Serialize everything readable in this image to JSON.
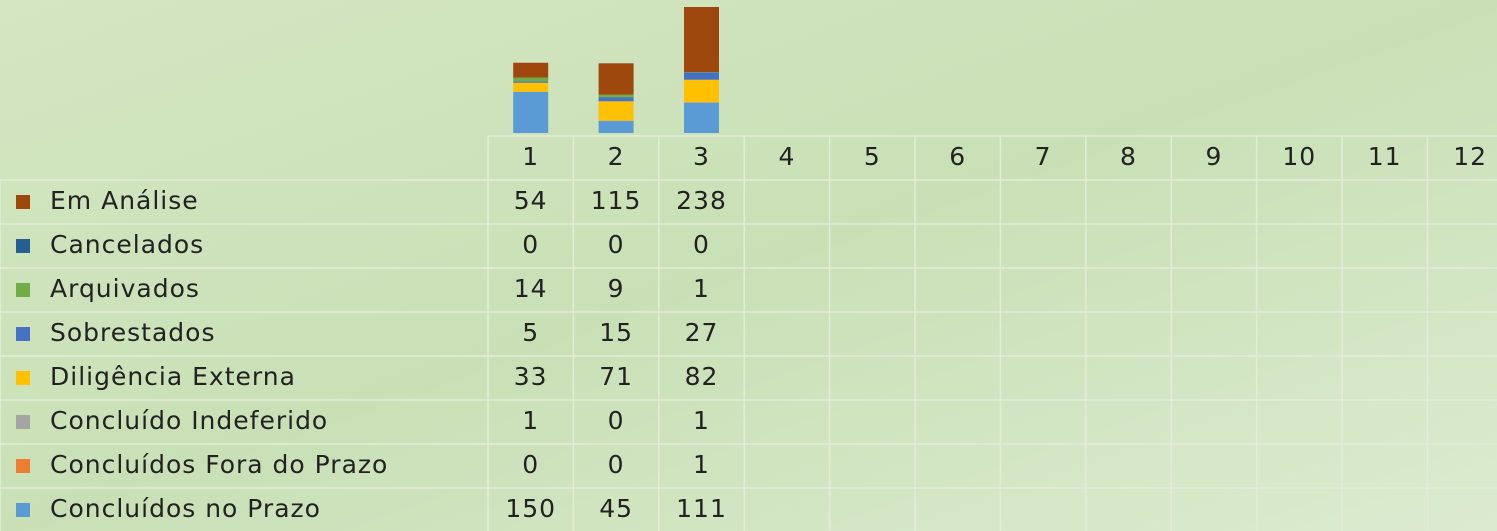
{
  "chart_data": {
    "type": "stacked_bar",
    "categories": [
      "1",
      "2",
      "3",
      "4",
      "5",
      "6",
      "7",
      "8",
      "9",
      "10",
      "11",
      "12"
    ],
    "series": [
      {
        "name": "Concluídos no Prazo",
        "color": "#5b9bd5",
        "values": [
          150,
          45,
          111,
          null,
          null,
          null,
          null,
          null,
          null,
          null,
          null,
          null
        ]
      },
      {
        "name": "Concluídos Fora do Prazo",
        "color": "#ed7d31",
        "values": [
          0,
          0,
          1,
          null,
          null,
          null,
          null,
          null,
          null,
          null,
          null,
          null
        ]
      },
      {
        "name": "Concluído Indeferido",
        "color": "#a5a5a5",
        "values": [
          1,
          0,
          1,
          null,
          null,
          null,
          null,
          null,
          null,
          null,
          null,
          null
        ]
      },
      {
        "name": "Diligência Externa",
        "color": "#ffc000",
        "values": [
          33,
          71,
          82,
          null,
          null,
          null,
          null,
          null,
          null,
          null,
          null,
          null
        ]
      },
      {
        "name": "Sobrestados",
        "color": "#4472c4",
        "values": [
          5,
          15,
          27,
          null,
          null,
          null,
          null,
          null,
          null,
          null,
          null,
          null
        ]
      },
      {
        "name": "Arquivados",
        "color": "#70ad47",
        "values": [
          14,
          9,
          1,
          null,
          null,
          null,
          null,
          null,
          null,
          null,
          null,
          null
        ]
      },
      {
        "name": "Cancelados",
        "color": "#255e91",
        "values": [
          0,
          0,
          0,
          null,
          null,
          null,
          null,
          null,
          null,
          null,
          null,
          null
        ]
      },
      {
        "name": "Em Análise",
        "color": "#9e480e",
        "values": [
          54,
          115,
          238,
          null,
          null,
          null,
          null,
          null,
          null,
          null,
          null,
          null
        ]
      }
    ]
  }
}
